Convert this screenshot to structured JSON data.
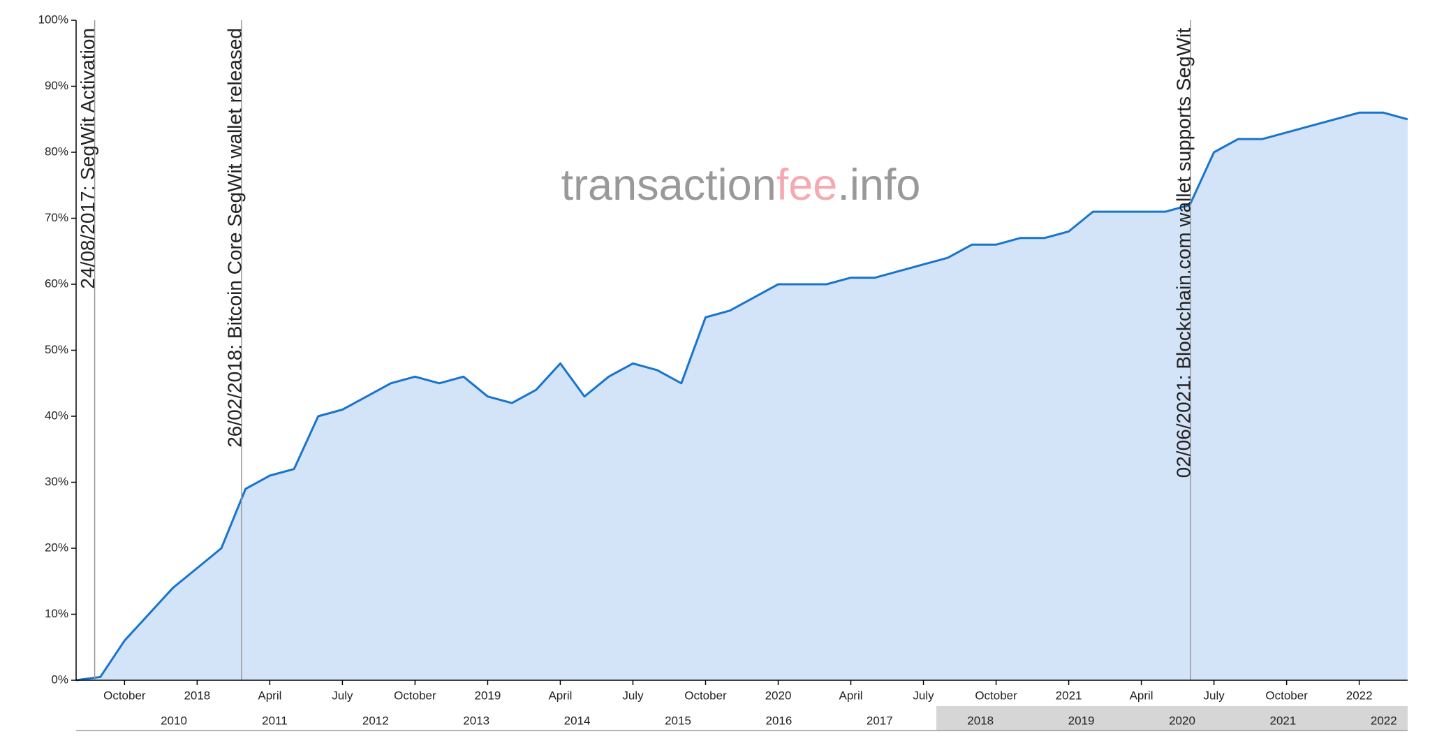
{
  "chart_data": {
    "type": "area",
    "watermark": [
      "transaction",
      "fee",
      ".info"
    ],
    "color": "#1874cd",
    "fill": "#d3e3f8",
    "xlim": [
      "2017-08",
      "2022-03"
    ],
    "ylim": [
      0,
      100
    ],
    "yticks": [
      {
        "value": 0,
        "label": "0%"
      },
      {
        "value": 10,
        "label": "10%"
      },
      {
        "value": 20,
        "label": "20%"
      },
      {
        "value": 30,
        "label": "30%"
      },
      {
        "value": 40,
        "label": "40%"
      },
      {
        "value": 50,
        "label": "50%"
      },
      {
        "value": 60,
        "label": "60%"
      },
      {
        "value": 70,
        "label": "70%"
      },
      {
        "value": 80,
        "label": "80%"
      },
      {
        "value": 90,
        "label": "90%"
      },
      {
        "value": 100,
        "label": "100%"
      }
    ],
    "xticks": [
      {
        "value": "2017-10",
        "label": "October"
      },
      {
        "value": "2018-01",
        "label": "2018"
      },
      {
        "value": "2018-04",
        "label": "April"
      },
      {
        "value": "2018-07",
        "label": "July"
      },
      {
        "value": "2018-10",
        "label": "October"
      },
      {
        "value": "2019-01",
        "label": "2019"
      },
      {
        "value": "2019-04",
        "label": "April"
      },
      {
        "value": "2019-07",
        "label": "July"
      },
      {
        "value": "2019-10",
        "label": "October"
      },
      {
        "value": "2020-01",
        "label": "2020"
      },
      {
        "value": "2020-04",
        "label": "April"
      },
      {
        "value": "2020-07",
        "label": "July"
      },
      {
        "value": "2020-10",
        "label": "October"
      },
      {
        "value": "2021-01",
        "label": "2021"
      },
      {
        "value": "2021-04",
        "label": "April"
      },
      {
        "value": "2021-07",
        "label": "July"
      },
      {
        "value": "2021-10",
        "label": "October"
      },
      {
        "value": "2022-01",
        "label": "2022"
      }
    ],
    "x": [
      "2017-08",
      "2017-09",
      "2017-10",
      "2017-11",
      "2017-12",
      "2018-01",
      "2018-02",
      "2018-03",
      "2018-04",
      "2018-05",
      "2018-06",
      "2018-07",
      "2018-08",
      "2018-09",
      "2018-10",
      "2018-11",
      "2018-12",
      "2019-01",
      "2019-02",
      "2019-03",
      "2019-04",
      "2019-05",
      "2019-06",
      "2019-07",
      "2019-08",
      "2019-09",
      "2019-10",
      "2019-11",
      "2019-12",
      "2020-01",
      "2020-02",
      "2020-03",
      "2020-04",
      "2020-05",
      "2020-06",
      "2020-07",
      "2020-08",
      "2020-09",
      "2020-10",
      "2020-11",
      "2020-12",
      "2021-01",
      "2021-02",
      "2021-03",
      "2021-04",
      "2021-05",
      "2021-06",
      "2021-07",
      "2021-08",
      "2021-09",
      "2021-10",
      "2021-11",
      "2021-12",
      "2022-01",
      "2022-02",
      "2022-03"
    ],
    "values": [
      0,
      0.5,
      6,
      10,
      14,
      17,
      20,
      29,
      31,
      32,
      40,
      41,
      43,
      45,
      46,
      45,
      46,
      43,
      42,
      44,
      48,
      43,
      46,
      48,
      47,
      45,
      55,
      56,
      58,
      60,
      60,
      60,
      61,
      61,
      62,
      63,
      64,
      66,
      66,
      67,
      67,
      68,
      71,
      71,
      71,
      71,
      72,
      80,
      82,
      82,
      83,
      84,
      85,
      86,
      86,
      85
    ],
    "annotations": [
      {
        "x": "2017-08-24",
        "text": "24/08/2017: SegWit Activation"
      },
      {
        "x": "2018-02-26",
        "text": "26/02/2018: Bitcoin Core SegWit wallet released"
      },
      {
        "x": "2021-06-02",
        "text": "02/06/2021: Blockchain.com wallet supports SegWit"
      }
    ],
    "navigator": {
      "labels": [
        "2010",
        "2011",
        "2012",
        "2013",
        "2014",
        "2015",
        "2016",
        "2017",
        "2018",
        "2019",
        "2020",
        "2021",
        "2022"
      ]
    }
  }
}
